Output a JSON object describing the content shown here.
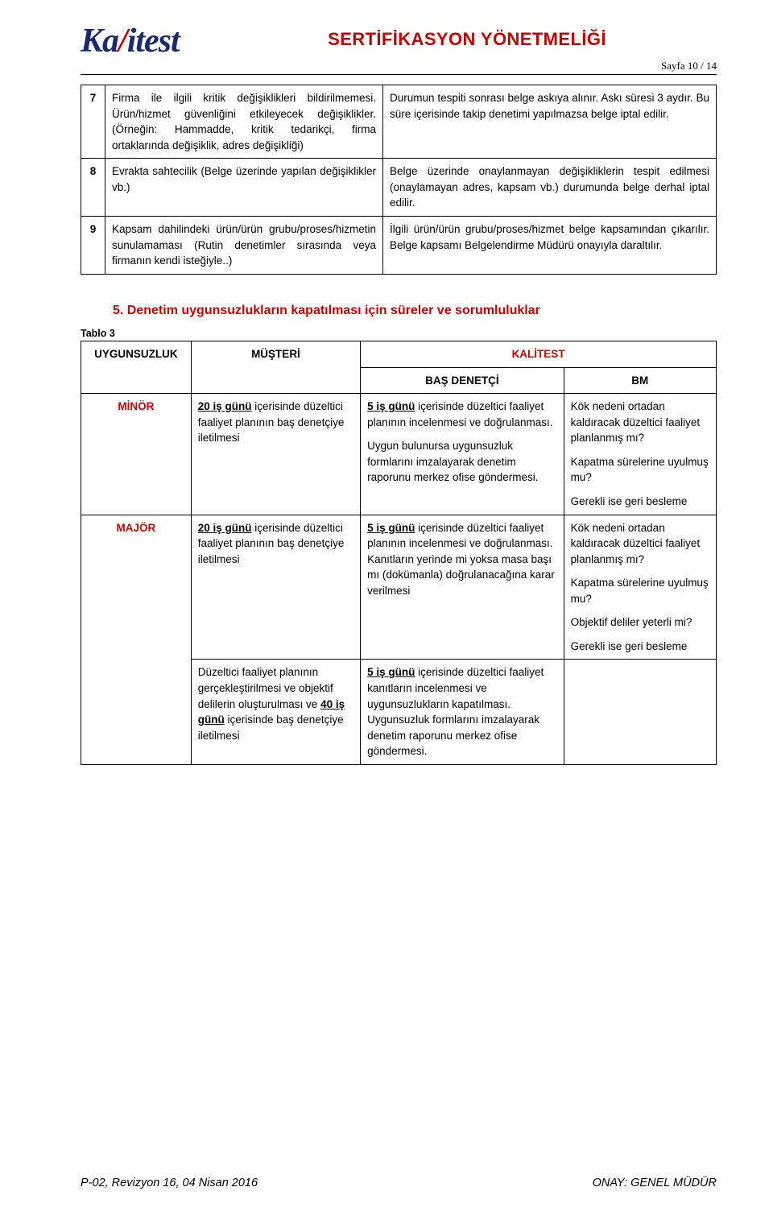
{
  "logo": {
    "name_part1": "Ka",
    "name_slash": "/",
    "name_part2": "itest"
  },
  "header": {
    "doc_title": "SERTİFİKASYON YÖNETMELİĞİ",
    "page_label": "Sayfa 10 / 14"
  },
  "table1": {
    "rows": [
      {
        "num": "7",
        "left": "Firma ile ilgili kritik değişiklikleri bildirilmemesi. Ürün/hizmet güvenliğini etkileyecek değişiklikler. (Örneğin: Hammadde, kritik tedarikçi, firma ortaklarında değişiklik, adres değişikliği)",
        "right": "Durumun tespiti sonrası belge askıya alınır. Askı süresi 3 aydır. Bu süre içerisinde takip denetimi yapılmazsa belge iptal edilir."
      },
      {
        "num": "8",
        "left": "Evrakta sahtecilik (Belge üzerinde yapılan değişiklikler vb.)",
        "right": "Belge üzerinde onaylanmayan değişikliklerin tespit edilmesi (onaylamayan adres, kapsam vb.) durumunda belge derhal iptal edilir."
      },
      {
        "num": "9",
        "left": "Kapsam dahilindeki ürün/ürün grubu/proses/hizmetin sunulamaması (Rutin denetimler sırasında veya firmanın kendi isteğiyle..)",
        "right": "İlgili ürün/ürün grubu/proses/hizmet belge kapsamından çıkarılır. Belge kapsamı Belgelendirme Müdürü onayıyla daraltılır."
      }
    ]
  },
  "section5": {
    "heading_num": "5. Denetim",
    "heading_rest": " uygunsuzlukların kapatılması için süreler ve sorumluluklar",
    "table_caption": "Tablo 3"
  },
  "table2": {
    "headers": {
      "uygunsuzluk": "UYGUNSUZLUK",
      "musteri": "MÜŞTERİ",
      "kalitest": "KALİTEST",
      "bas_denetci": "BAŞ DENETÇİ",
      "bm": "BM"
    },
    "rows": [
      {
        "cat": "MİNÖR",
        "musteri_bold": "20 iş günü",
        "musteri_rest": " içerisinde düzeltici faaliyet planının baş denetçiye iletilmesi",
        "bd_bold": "5 iş günü",
        "bd_p1": " içerisinde düzeltici faaliyet planının incelenmesi ve doğrulanması.",
        "bd_p2": "Uygun bulunursa uygunsuzluk formlarını imzalayarak denetim raporunu merkez ofise göndermesi.",
        "bm_lines": [
          "Kök nedeni ortadan kaldıracak düzeltici faaliyet planlanmış mı?",
          "Kapatma sürelerine uyulmuş mu?",
          "Gerekli ise geri besleme"
        ]
      },
      {
        "cat": "MAJÖR",
        "musteri_bold": "20 iş günü",
        "musteri_rest": " içerisinde düzeltici faaliyet planının baş denetçiye iletilmesi",
        "bd_bold": "5 iş günü",
        "bd_p1": " içerisinde düzeltici faaliyet planının incelenmesi ve doğrulanması. Kanıtların yerinde mi yoksa masa başı mı (dokümanla) doğrulanacağına karar verilmesi",
        "bm_lines": [
          "Kök nedeni ortadan kaldıracak düzeltici faaliyet planlanmış mı?",
          "Kapatma sürelerine uyulmuş mu?",
          "Objektif deliler yeterli mi?",
          "Gerekli ise geri besleme"
        ]
      },
      {
        "cat": "",
        "musteri_pre": "Düzeltici faaliyet planının gerçekleştirilmesi ve objektif delilerin oluşturulması ve ",
        "musteri_bold": "40 iş günü",
        "musteri_rest": " içerisinde baş denetçiye iletilmesi",
        "bd_bold": "5 iş günü",
        "bd_p1": " içerisinde düzeltici faaliyet kanıtların incelenmesi ve uygunsuzlukların kapatılması. Uygunsuzluk formlarını imzalayarak denetim raporunu merkez ofise göndermesi.",
        "bm_lines": []
      }
    ]
  },
  "footer": {
    "left": "P-02, Revizyon 16, 04 Nisan 2016",
    "right": "ONAY: GENEL MÜDÜR"
  },
  "colors": {
    "accent_red": "#c00000",
    "logo_blue": "#1a2b6d",
    "text": "#000000",
    "bg": "#ffffff",
    "border": "#000000"
  },
  "fonts": {
    "body": "Verdana",
    "title_size_pt": 16,
    "body_size_pt": 10,
    "footer_size_pt": 11
  }
}
